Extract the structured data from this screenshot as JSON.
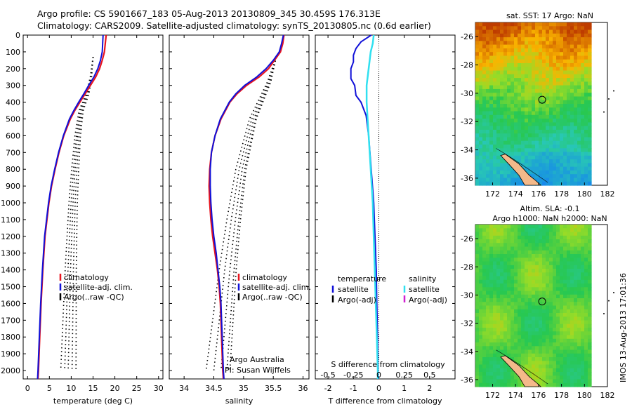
{
  "header": {
    "line1": "Argo profile: CS 5901667_183 05-Aug-2013 20130809_345 30.459S 176.313E",
    "line2": "Climatology: CARS2009. Satellite-adjusted climatology: synTS_20130805.nc (0.6d earlier)"
  },
  "footer": {
    "stamp": "IMOS 13-Aug-2013 17:01:36",
    "credit1": "Argo Australia",
    "credit2": "PI: Susan Wijffels"
  },
  "colors": {
    "climatology": "#e8141e",
    "satellite": "#1010d8",
    "argo": "#000000",
    "sal_satellite": "#30e0f0",
    "sal_argo": "#d020d0"
  },
  "chart_data": [
    {
      "type": "line",
      "panel": "temperature",
      "xlabel": "temperature (deg C)",
      "xlim": [
        -1,
        31
      ],
      "xticks": [
        0,
        5,
        10,
        15,
        20,
        25,
        30
      ],
      "ylim": [
        2050,
        0
      ],
      "yticks": [
        0,
        100,
        200,
        300,
        400,
        500,
        600,
        700,
        800,
        900,
        1000,
        1100,
        1200,
        1300,
        1400,
        1500,
        1600,
        1700,
        1800,
        1900,
        2000
      ],
      "legend": [
        "climatology",
        "satellite-adj. clim.",
        "Argo(..raw -QC)"
      ],
      "series": [
        {
          "name": "climatology",
          "depth": [
            0,
            50,
            100,
            150,
            200,
            250,
            300,
            350,
            400,
            450,
            500,
            600,
            700,
            800,
            900,
            1000,
            1200,
            1400,
            1600,
            1800,
            2000,
            2050
          ],
          "values": [
            18.0,
            17.8,
            17.6,
            17.1,
            16.5,
            15.6,
            14.4,
            13.2,
            12.0,
            10.8,
            9.8,
            8.3,
            7.2,
            6.3,
            5.5,
            4.9,
            4.0,
            3.5,
            3.1,
            2.8,
            2.5,
            2.4
          ]
        },
        {
          "name": "satellite-adj. clim.",
          "depth": [
            0,
            50,
            100,
            150,
            200,
            250,
            300,
            350,
            400,
            450,
            500,
            600,
            700,
            800,
            900,
            1000,
            1200,
            1400,
            1600,
            1800,
            2000,
            2050
          ],
          "values": [
            17.3,
            17.2,
            17.1,
            16.7,
            16.1,
            15.2,
            14.0,
            12.9,
            11.7,
            10.6,
            9.6,
            8.2,
            7.1,
            6.2,
            5.4,
            4.8,
            3.9,
            3.4,
            3.0,
            2.7,
            2.4,
            2.3
          ]
        },
        {
          "name": "Argo(..raw -QC)",
          "depth": [
            130,
            250,
            350,
            450,
            600,
            800,
            1000,
            1200,
            1400,
            1600,
            1800,
            2000
          ],
          "values": [
            15.0,
            14.6,
            13.9,
            12.5,
            11.8,
            11.3,
            10.9,
            10.7,
            10.5,
            10.4,
            10.3,
            10.2
          ]
        }
      ]
    },
    {
      "type": "line",
      "panel": "salinity",
      "xlabel": "salinity",
      "xlim": [
        33.75,
        36.1
      ],
      "xticks": [
        34,
        34.5,
        35,
        35.5,
        36
      ],
      "ylim": [
        2050,
        0
      ],
      "legend": [
        "climatology",
        "satellite-adj. clim.",
        "Argo(..raw -QC)"
      ],
      "series": [
        {
          "name": "climatology",
          "depth": [
            0,
            50,
            100,
            150,
            200,
            250,
            300,
            350,
            400,
            500,
            600,
            700,
            800,
            900,
            1000,
            1100,
            1200,
            1300,
            1400,
            1500,
            1600,
            1800,
            2000,
            2050
          ],
          "values": [
            35.68,
            35.66,
            35.62,
            35.52,
            35.42,
            35.26,
            35.05,
            34.89,
            34.77,
            34.62,
            34.52,
            34.46,
            34.43,
            34.42,
            34.43,
            34.45,
            34.48,
            34.52,
            34.56,
            34.59,
            34.61,
            34.63,
            34.65,
            34.66
          ]
        },
        {
          "name": "satellite-adj. clim.",
          "depth": [
            0,
            50,
            100,
            150,
            200,
            250,
            300,
            350,
            400,
            500,
            600,
            700,
            800,
            900,
            1000,
            1100,
            1200,
            1300,
            1400,
            1500,
            1600,
            1800,
            2000,
            2050
          ],
          "values": [
            35.67,
            35.64,
            35.6,
            35.5,
            35.38,
            35.22,
            35.02,
            34.87,
            34.76,
            34.61,
            34.52,
            34.46,
            34.44,
            34.44,
            34.45,
            34.47,
            34.5,
            34.54,
            34.57,
            34.6,
            34.62,
            34.64,
            34.66,
            34.67
          ]
        },
        {
          "name": "Argo(..raw -QC)",
          "depth": [
            130,
            280,
            500,
            800,
            1100,
            1400,
            1700,
            2000
          ],
          "values": [
            35.55,
            35.45,
            35.2,
            35.02,
            34.92,
            34.84,
            34.78,
            34.72
          ]
        }
      ]
    },
    {
      "type": "line",
      "panel": "difference",
      "xlabel": "T difference from climatology",
      "xlabel2": "S difference from climatology",
      "xlim": [
        -2.5,
        3
      ],
      "xticks": [
        -2,
        -1,
        0,
        1,
        2
      ],
      "xticks2": [
        -0.5,
        -0.25,
        0,
        0.25,
        0.5
      ],
      "xticklabels2": [
        "-0.5",
        "-0.25",
        "0",
        "0.25",
        "0.5"
      ],
      "ylim": [
        2050,
        0
      ],
      "legend_left": [
        "temperature",
        "satellite",
        "Argo(-adj)"
      ],
      "legend_right": [
        "salinity",
        "satellite",
        "Argo(-adj)"
      ],
      "series": [
        {
          "name": "satellite",
          "variable": "temperature",
          "depth": [
            0,
            20,
            40,
            80,
            120,
            160,
            200,
            260,
            300,
            360,
            400,
            480,
            600,
            800,
            1000,
            1200,
            1400,
            1600,
            1800,
            2000,
            2050
          ],
          "values": [
            -0.3,
            -0.5,
            -0.7,
            -0.9,
            -1.0,
            -1.0,
            -1.1,
            -1.1,
            -0.95,
            -0.9,
            -0.7,
            -0.5,
            -0.4,
            -0.3,
            -0.2,
            -0.15,
            -0.1,
            -0.08,
            -0.05,
            -0.03,
            -0.02
          ]
        },
        {
          "name": "satellite",
          "variable": "salinity",
          "depth": [
            0,
            50,
            100,
            200,
            300,
            400,
            500,
            600,
            800,
            1000,
            1200,
            1400,
            1600,
            1800,
            2000,
            2050
          ],
          "values": [
            -0.05,
            -0.06,
            -0.08,
            -0.1,
            -0.12,
            -0.12,
            -0.11,
            -0.1,
            -0.08,
            -0.06,
            -0.05,
            -0.04,
            -0.03,
            -0.02,
            -0.01,
            -0.01
          ]
        }
      ]
    },
    {
      "type": "heatmap",
      "panel": "map-sst",
      "title": "sat. SST: 17 Argo: NaN",
      "xlim": [
        170.5,
        182
      ],
      "ylim": [
        -36.5,
        -25
      ],
      "xticks": [
        172,
        174,
        176,
        178,
        180,
        182
      ],
      "yticks": [
        -26,
        -28,
        -30,
        -32,
        -34,
        -36
      ],
      "marker": [
        176.313,
        -30.459
      ]
    },
    {
      "type": "heatmap",
      "panel": "map-sla",
      "title": "Altim. SLA: -0.1",
      "subtitle": "Argo h1000: NaN h2000: NaN",
      "xlim": [
        170.5,
        182
      ],
      "ylim": [
        -36.5,
        -25
      ],
      "xticks": [
        172,
        174,
        176,
        178,
        180,
        182
      ],
      "yticks": [
        -26,
        -28,
        -30,
        -32,
        -34,
        -36
      ],
      "marker": [
        176.313,
        -30.459
      ]
    }
  ]
}
